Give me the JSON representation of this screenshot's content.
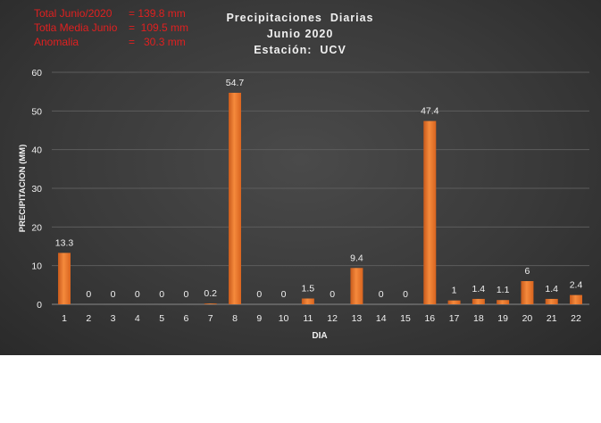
{
  "stats": [
    {
      "label": "Total Junio/2020",
      "value": "= 139.8 mm"
    },
    {
      "label": "Totla Media Junio",
      "value": "=  109.5 mm"
    },
    {
      "label": "Anomalia",
      "value": "=   30.3 mm"
    }
  ],
  "chart_data": {
    "type": "bar",
    "title": [
      "Precipitaciones  Diarias",
      "Junio 2020",
      "Estación:  UCV"
    ],
    "xlabel": "DIA",
    "ylabel": "PRECIPITACION  (MM)",
    "ylim": [
      0,
      60
    ],
    "yticks": [
      0,
      10,
      20,
      30,
      40,
      50,
      60
    ],
    "grid": true,
    "categories": [
      "1",
      "2",
      "3",
      "4",
      "5",
      "6",
      "7",
      "8",
      "9",
      "10",
      "11",
      "12",
      "13",
      "14",
      "15",
      "16",
      "17",
      "18",
      "19",
      "20",
      "21",
      "22"
    ],
    "values": [
      13.3,
      0,
      0,
      0,
      0,
      0,
      0.2,
      54.7,
      0,
      0,
      1.5,
      0,
      9.4,
      0,
      0,
      47.4,
      1,
      1.4,
      1.1,
      6,
      1.4,
      2.4
    ],
    "data_labels": [
      "13.3",
      "0",
      "0",
      "0",
      "0",
      "0",
      "0.2",
      "54.7",
      "0",
      "0",
      "1.5",
      "0",
      "9.4",
      "0",
      "0",
      "47.4",
      "1",
      "1.4",
      "1.1",
      "6",
      "1.4",
      "2.4"
    ],
    "bar_color": "#f07a30"
  }
}
